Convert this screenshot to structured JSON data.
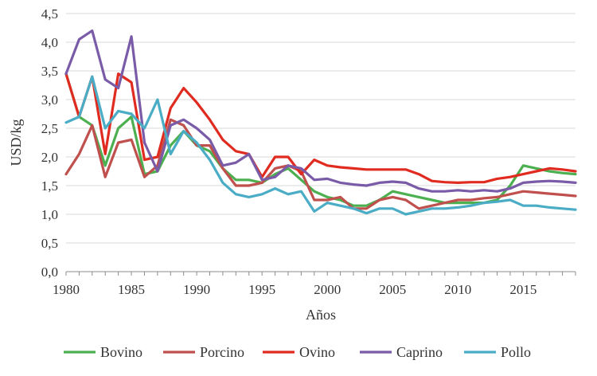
{
  "chart_data": {
    "type": "line",
    "title": "",
    "xlabel": "Años",
    "ylabel": "USD/kg",
    "xlim": [
      1980,
      2019
    ],
    "ylim": [
      0,
      4.5
    ],
    "x_ticks": [
      1980,
      1985,
      1990,
      1995,
      2000,
      2005,
      2010,
      2015
    ],
    "y_ticks": [
      "0,0",
      "0,5",
      "1,0",
      "1,5",
      "2,0",
      "2,5",
      "3,0",
      "3,5",
      "4,0",
      "4,5"
    ],
    "y_tick_values": [
      0,
      0.5,
      1,
      1.5,
      2,
      2.5,
      3,
      3.5,
      4,
      4.5
    ],
    "grid": "horizontal",
    "legend_position": "bottom",
    "x": [
      1980,
      1981,
      1982,
      1983,
      1984,
      1985,
      1986,
      1987,
      1988,
      1989,
      1990,
      1991,
      1992,
      1993,
      1994,
      1995,
      1996,
      1997,
      1998,
      1999,
      2000,
      2001,
      2002,
      2003,
      2004,
      2005,
      2006,
      2007,
      2008,
      2009,
      2010,
      2011,
      2012,
      2013,
      2014,
      2015,
      2016,
      2017,
      2018,
      2019
    ],
    "series": [
      {
        "name": "Bovino",
        "color": "#4caf50",
        "values": [
          3.45,
          2.7,
          2.55,
          1.85,
          2.5,
          2.7,
          1.7,
          1.75,
          2.2,
          2.45,
          2.2,
          2.1,
          1.8,
          1.6,
          1.6,
          1.55,
          1.7,
          1.8,
          1.6,
          1.4,
          1.3,
          1.25,
          1.15,
          1.15,
          1.25,
          1.4,
          1.35,
          1.3,
          1.25,
          1.2,
          1.2,
          1.2,
          1.2,
          1.25,
          1.5,
          1.85,
          1.8,
          1.75,
          1.72,
          1.7
        ]
      },
      {
        "name": "Porcino",
        "color": "#c0504d",
        "values": [
          1.7,
          2.05,
          2.55,
          1.65,
          2.25,
          2.3,
          1.65,
          1.85,
          2.65,
          2.55,
          2.2,
          2.2,
          1.8,
          1.5,
          1.5,
          1.55,
          1.8,
          1.85,
          1.75,
          1.25,
          1.25,
          1.3,
          1.1,
          1.1,
          1.25,
          1.3,
          1.25,
          1.1,
          1.15,
          1.2,
          1.25,
          1.25,
          1.28,
          1.3,
          1.35,
          1.4,
          1.38,
          1.36,
          1.34,
          1.32
        ]
      },
      {
        "name": "Ovino",
        "color": "#e02b20",
        "values": [
          3.45,
          2.7,
          3.4,
          2.05,
          3.45,
          3.3,
          1.95,
          2.0,
          2.85,
          3.2,
          2.95,
          2.65,
          2.3,
          2.1,
          2.05,
          1.65,
          2.0,
          2.0,
          1.7,
          1.95,
          1.85,
          1.82,
          1.8,
          1.78,
          1.78,
          1.78,
          1.78,
          1.7,
          1.58,
          1.56,
          1.55,
          1.56,
          1.56,
          1.62,
          1.65,
          1.7,
          1.75,
          1.8,
          1.78,
          1.75
        ]
      },
      {
        "name": "Caprino",
        "color": "#7a5ba8",
        "values": [
          3.45,
          4.05,
          4.2,
          3.35,
          3.2,
          4.1,
          2.25,
          1.75,
          2.55,
          2.65,
          2.5,
          2.3,
          1.85,
          1.9,
          2.05,
          1.6,
          1.65,
          1.85,
          1.8,
          1.6,
          1.62,
          1.55,
          1.52,
          1.5,
          1.55,
          1.57,
          1.55,
          1.45,
          1.4,
          1.4,
          1.42,
          1.4,
          1.42,
          1.4,
          1.45,
          1.55,
          1.57,
          1.58,
          1.57,
          1.55
        ]
      },
      {
        "name": "Pollo",
        "color": "#4bacc6",
        "values": [
          2.6,
          2.7,
          3.4,
          2.5,
          2.8,
          2.75,
          2.5,
          3.0,
          2.05,
          2.45,
          2.25,
          1.95,
          1.55,
          1.35,
          1.3,
          1.35,
          1.45,
          1.35,
          1.4,
          1.05,
          1.2,
          1.15,
          1.1,
          1.02,
          1.1,
          1.1,
          1.0,
          1.05,
          1.1,
          1.1,
          1.12,
          1.15,
          1.2,
          1.22,
          1.25,
          1.15,
          1.15,
          1.12,
          1.1,
          1.08
        ]
      }
    ]
  }
}
